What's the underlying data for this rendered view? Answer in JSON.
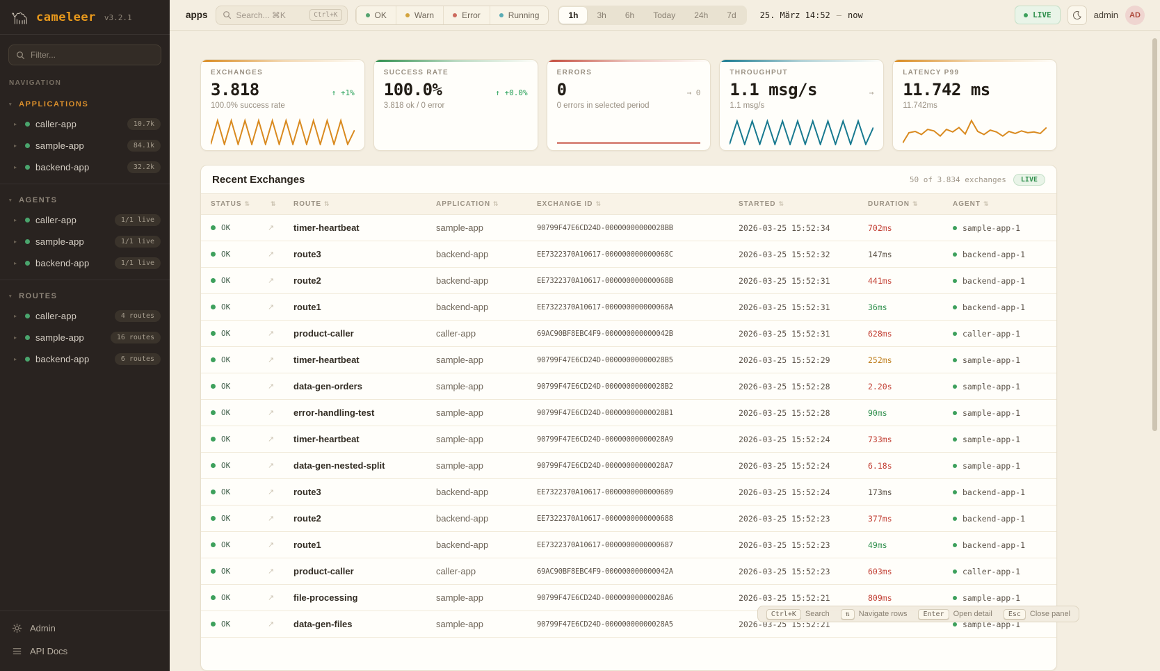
{
  "app": {
    "name": "cameleer",
    "version": "v3.2.1"
  },
  "sidebar": {
    "filter_placeholder": "Filter...",
    "nav_label": "NAVIGATION",
    "sections": [
      {
        "title": "APPLICATIONS",
        "title_class": "accent-title",
        "items": [
          {
            "name": "caller-app",
            "badge": "10.7k"
          },
          {
            "name": "sample-app",
            "badge": "84.1k"
          },
          {
            "name": "backend-app",
            "badge": "32.2k"
          }
        ]
      },
      {
        "title": "AGENTS",
        "title_class": "",
        "items": [
          {
            "name": "caller-app",
            "badge": "1/1 live"
          },
          {
            "name": "sample-app",
            "badge": "1/1 live"
          },
          {
            "name": "backend-app",
            "badge": "1/1 live"
          }
        ]
      },
      {
        "title": "ROUTES",
        "title_class": "",
        "items": [
          {
            "name": "caller-app",
            "badge": "4 routes"
          },
          {
            "name": "sample-app",
            "badge": "16 routes"
          },
          {
            "name": "backend-app",
            "badge": "6 routes"
          }
        ]
      }
    ],
    "footer": [
      {
        "label": "Admin",
        "icon": "gear"
      },
      {
        "label": "API Docs",
        "icon": "list"
      }
    ]
  },
  "topbar": {
    "breadcrumb": "apps",
    "search_placeholder": "Search... ⌘K",
    "search_kbd": "Ctrl+K",
    "status_filters": [
      {
        "label": "OK",
        "color": "#55a470"
      },
      {
        "label": "Warn",
        "color": "#d3a43e"
      },
      {
        "label": "Error",
        "color": "#cc6a5e"
      },
      {
        "label": "Running",
        "color": "#5aacb5"
      }
    ],
    "time_ranges": [
      {
        "label": "1h",
        "cls": "active"
      },
      {
        "label": "3h",
        "cls": ""
      },
      {
        "label": "6h",
        "cls": ""
      },
      {
        "label": "Today",
        "cls": ""
      },
      {
        "label": "24h",
        "cls": ""
      },
      {
        "label": "7d",
        "cls": ""
      }
    ],
    "time_from": "25. März 14:52",
    "time_sep": "—",
    "time_to": "now",
    "live_label": "LIVE",
    "user": "admin",
    "avatar": "AD"
  },
  "kpis": [
    {
      "label": "EXCHANGES",
      "value": "3.818",
      "trend": "↑ +1%",
      "trend_class": "trend-green",
      "subtitle": "100.0% success rate",
      "accent": "#d98a1f",
      "spark_color": "#d98a1f",
      "spark_points": [
        1,
        0.08,
        1,
        0.08,
        1,
        0.08,
        1,
        0.08,
        1,
        0.08,
        1,
        0.08,
        1,
        0.08,
        1,
        0.08,
        1,
        0.08,
        1,
        0.08,
        1,
        0.45
      ]
    },
    {
      "label": "SUCCESS RATE",
      "value": "100.0%",
      "trend": "↑ +0.0%",
      "trend_class": "trend-green",
      "subtitle": "3.818 ok / 0 error",
      "accent": "#2f8f4e",
      "spark_color": "#2f8f4e",
      "spark_points": []
    },
    {
      "label": "ERRORS",
      "value": "0",
      "trend": "→ 0",
      "trend_class": "trend-gray",
      "subtitle": "0 errors in selected period",
      "accent": "#c44b3c",
      "spark_color": "#c44b3c",
      "spark_points": [
        0.95,
        0.95
      ]
    },
    {
      "label": "THROUGHPUT",
      "value": "1.1 msg/s",
      "trend": "→",
      "trend_class": "trend-gray",
      "subtitle": "1.1 msg/s",
      "accent": "#17798f",
      "spark_color": "#17798f",
      "spark_points": [
        1,
        0.1,
        1,
        0.1,
        1,
        0.1,
        1,
        0.1,
        1,
        0.1,
        1,
        0.1,
        1,
        0.1,
        1,
        0.1,
        1,
        0.1,
        1,
        0.35
      ]
    },
    {
      "label": "LATENCY P99",
      "value": "11.742 ms",
      "trend": "",
      "trend_class": "trend-gray",
      "subtitle": "11.742ms",
      "accent": "#d98a1f",
      "spark_color": "#d98a1f",
      "spark_points": [
        0.95,
        0.55,
        0.5,
        0.62,
        0.42,
        0.48,
        0.68,
        0.42,
        0.52,
        0.35,
        0.6,
        0.08,
        0.5,
        0.62,
        0.45,
        0.52,
        0.68,
        0.5,
        0.58,
        0.48,
        0.55,
        0.52,
        0.58,
        0.35
      ]
    }
  ],
  "exchanges_panel": {
    "title": "Recent Exchanges",
    "meta": "50 of 3.834 exchanges",
    "live_label": "LIVE",
    "columns": [
      {
        "label": "STATUS"
      },
      {
        "label": ""
      },
      {
        "label": "ROUTE"
      },
      {
        "label": "APPLICATION"
      },
      {
        "label": "EXCHANGE ID"
      },
      {
        "label": "STARTED"
      },
      {
        "label": "DURATION"
      },
      {
        "label": "AGENT"
      }
    ],
    "rows": [
      {
        "status": "OK",
        "link": "↗",
        "route": "timer-heartbeat",
        "app": "sample-app",
        "id": "90799F47E6CD24D-00000000000028BB",
        "started": "2026-03-25 15:52:34",
        "duration": "702ms",
        "duration_class": "dur-red",
        "agent": "sample-app-1"
      },
      {
        "status": "OK",
        "link": "↗",
        "route": "route3",
        "app": "backend-app",
        "id": "EE7322370A10617-000000000000068C",
        "started": "2026-03-25 15:52:32",
        "duration": "147ms",
        "duration_class": "dur-neutral",
        "agent": "backend-app-1"
      },
      {
        "status": "OK",
        "link": "↗",
        "route": "route2",
        "app": "backend-app",
        "id": "EE7322370A10617-000000000000068B",
        "started": "2026-03-25 15:52:31",
        "duration": "441ms",
        "duration_class": "dur-red",
        "agent": "backend-app-1"
      },
      {
        "status": "OK",
        "link": "↗",
        "route": "route1",
        "app": "backend-app",
        "id": "EE7322370A10617-000000000000068A",
        "started": "2026-03-25 15:52:31",
        "duration": "36ms",
        "duration_class": "dur-green",
        "agent": "backend-app-1"
      },
      {
        "status": "OK",
        "link": "↗",
        "route": "product-caller",
        "app": "caller-app",
        "id": "69AC90BF8EBC4F9-000000000000042B",
        "started": "2026-03-25 15:52:31",
        "duration": "628ms",
        "duration_class": "dur-red",
        "agent": "caller-app-1"
      },
      {
        "status": "OK",
        "link": "↗",
        "route": "timer-heartbeat",
        "app": "sample-app",
        "id": "90799F47E6CD24D-00000000000028B5",
        "started": "2026-03-25 15:52:29",
        "duration": "252ms",
        "duration_class": "dur-amber",
        "agent": "sample-app-1"
      },
      {
        "status": "OK",
        "link": "↗",
        "route": "data-gen-orders",
        "app": "sample-app",
        "id": "90799F47E6CD24D-00000000000028B2",
        "started": "2026-03-25 15:52:28",
        "duration": "2.20s",
        "duration_class": "dur-red",
        "agent": "sample-app-1"
      },
      {
        "status": "OK",
        "link": "↗",
        "route": "error-handling-test",
        "app": "sample-app",
        "id": "90799F47E6CD24D-00000000000028B1",
        "started": "2026-03-25 15:52:28",
        "duration": "90ms",
        "duration_class": "dur-green",
        "agent": "sample-app-1"
      },
      {
        "status": "OK",
        "link": "↗",
        "route": "timer-heartbeat",
        "app": "sample-app",
        "id": "90799F47E6CD24D-00000000000028A9",
        "started": "2026-03-25 15:52:24",
        "duration": "733ms",
        "duration_class": "dur-red",
        "agent": "sample-app-1"
      },
      {
        "status": "OK",
        "link": "↗",
        "route": "data-gen-nested-split",
        "app": "sample-app",
        "id": "90799F47E6CD24D-00000000000028A7",
        "started": "2026-03-25 15:52:24",
        "duration": "6.18s",
        "duration_class": "dur-red",
        "agent": "sample-app-1"
      },
      {
        "status": "OK",
        "link": "↗",
        "route": "route3",
        "app": "backend-app",
        "id": "EE7322370A10617-0000000000000689",
        "started": "2026-03-25 15:52:24",
        "duration": "173ms",
        "duration_class": "dur-neutral",
        "agent": "backend-app-1"
      },
      {
        "status": "OK",
        "link": "↗",
        "route": "route2",
        "app": "backend-app",
        "id": "EE7322370A10617-0000000000000688",
        "started": "2026-03-25 15:52:23",
        "duration": "377ms",
        "duration_class": "dur-red",
        "agent": "backend-app-1"
      },
      {
        "status": "OK",
        "link": "↗",
        "route": "route1",
        "app": "backend-app",
        "id": "EE7322370A10617-0000000000000687",
        "started": "2026-03-25 15:52:23",
        "duration": "49ms",
        "duration_class": "dur-green",
        "agent": "backend-app-1"
      },
      {
        "status": "OK",
        "link": "↗",
        "route": "product-caller",
        "app": "caller-app",
        "id": "69AC90BF8EBC4F9-000000000000042A",
        "started": "2026-03-25 15:52:23",
        "duration": "603ms",
        "duration_class": "dur-red",
        "agent": "caller-app-1"
      },
      {
        "status": "OK",
        "link": "↗",
        "route": "file-processing",
        "app": "sample-app",
        "id": "90799F47E6CD24D-00000000000028A6",
        "started": "2026-03-25 15:52:21",
        "duration": "809ms",
        "duration_class": "dur-red",
        "agent": "sample-app-1"
      },
      {
        "status": "OK",
        "link": "↗",
        "route": "data-gen-files",
        "app": "sample-app",
        "id": "90799F47E6CD24D-00000000000028A5",
        "started": "2026-03-25 15:52:21",
        "duration": "",
        "duration_class": "dur-neutral",
        "agent": "sample-app-1"
      }
    ]
  },
  "hints": [
    {
      "key": "Ctrl+K",
      "label": "Search"
    },
    {
      "key": "⇅",
      "label": "Navigate rows"
    },
    {
      "key": "Enter",
      "label": "Open detail"
    },
    {
      "key": "Esc",
      "label": "Close panel"
    }
  ]
}
